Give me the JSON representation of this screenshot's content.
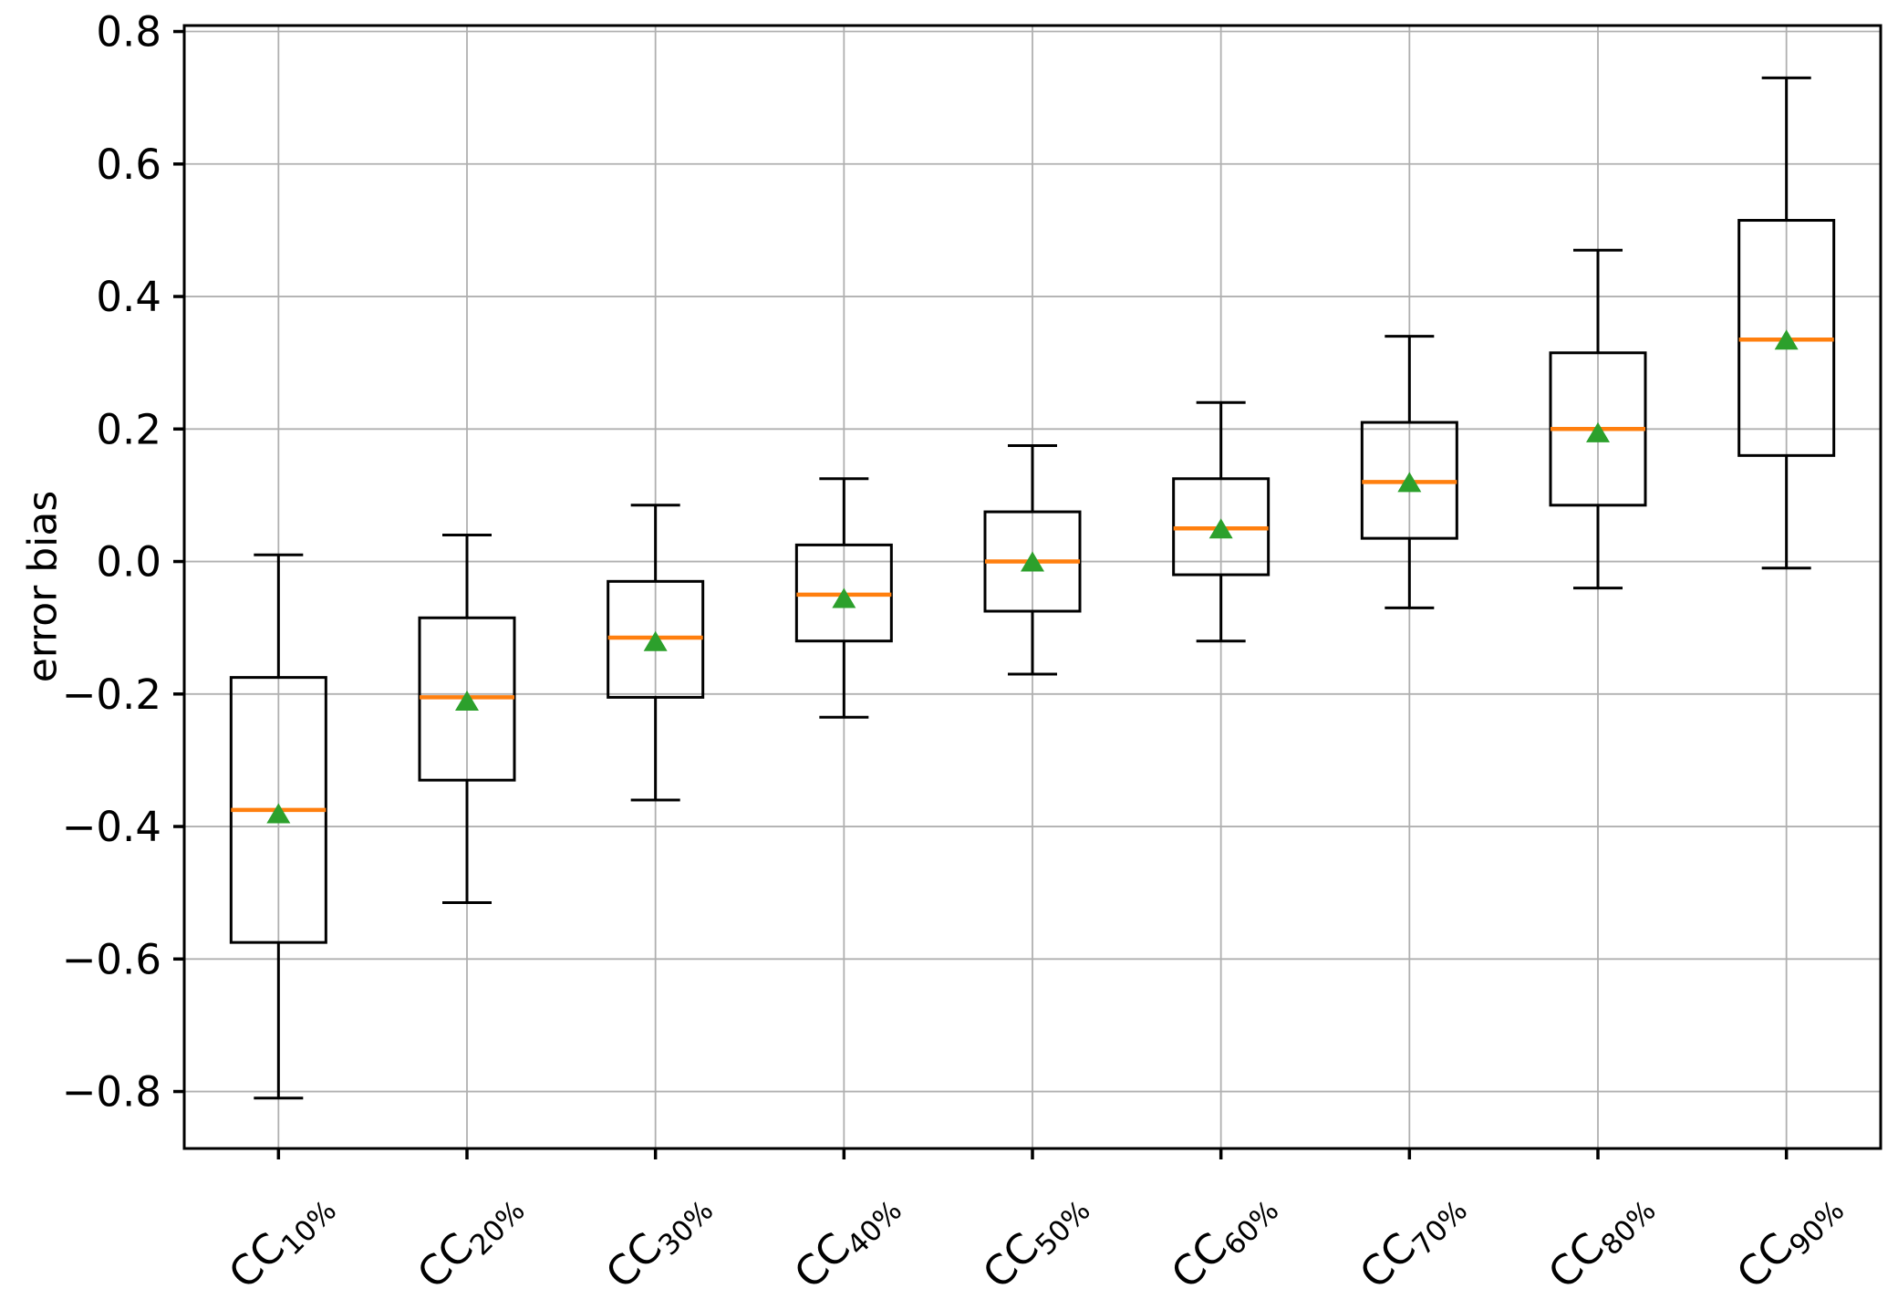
{
  "chart_data": {
    "type": "boxplot",
    "title": "",
    "ylabel": "error bias",
    "xlabel": "",
    "grid": true,
    "legend": "none",
    "ylim": [
      -0.886,
      0.809
    ],
    "yticks": [
      0.8,
      0.6,
      0.4,
      0.2,
      0.0,
      -0.2,
      -0.4,
      -0.6,
      -0.8
    ],
    "ytick_labels": [
      "0.8",
      "0.6",
      "0.4",
      "0.2",
      "0.0",
      "−0.2",
      "−0.4",
      "−0.6",
      "−0.8"
    ],
    "categories": [
      {
        "base": "CC",
        "sub": "10%"
      },
      {
        "base": "CC",
        "sub": "20%"
      },
      {
        "base": "CC",
        "sub": "30%"
      },
      {
        "base": "CC",
        "sub": "40%"
      },
      {
        "base": "CC",
        "sub": "50%"
      },
      {
        "base": "CC",
        "sub": "60%"
      },
      {
        "base": "CC",
        "sub": "70%"
      },
      {
        "base": "CC",
        "sub": "80%"
      },
      {
        "base": "CC",
        "sub": "90%"
      }
    ],
    "series": [
      {
        "name": "CC10%",
        "whislo": -0.81,
        "q1": -0.575,
        "med": -0.375,
        "mean": -0.38,
        "q3": -0.175,
        "whishi": 0.01
      },
      {
        "name": "CC20%",
        "whislo": -0.515,
        "q1": -0.33,
        "med": -0.205,
        "mean": -0.21,
        "q3": -0.085,
        "whishi": 0.04
      },
      {
        "name": "CC30%",
        "whislo": -0.36,
        "q1": -0.205,
        "med": -0.115,
        "mean": -0.12,
        "q3": -0.03,
        "whishi": 0.085
      },
      {
        "name": "CC40%",
        "whislo": -0.235,
        "q1": -0.12,
        "med": -0.05,
        "mean": -0.055,
        "q3": 0.025,
        "whishi": 0.125
      },
      {
        "name": "CC50%",
        "whislo": -0.17,
        "q1": -0.075,
        "med": 0.0,
        "mean": 0.0,
        "q3": 0.075,
        "whishi": 0.175
      },
      {
        "name": "CC60%",
        "whislo": -0.12,
        "q1": -0.02,
        "med": 0.05,
        "mean": 0.05,
        "q3": 0.125,
        "whishi": 0.24
      },
      {
        "name": "CC70%",
        "whislo": -0.07,
        "q1": 0.035,
        "med": 0.12,
        "mean": 0.12,
        "q3": 0.21,
        "whishi": 0.34
      },
      {
        "name": "CC80%",
        "whislo": -0.04,
        "q1": 0.085,
        "med": 0.2,
        "mean": 0.195,
        "q3": 0.315,
        "whishi": 0.47
      },
      {
        "name": "CC90%",
        "whislo": -0.01,
        "q1": 0.16,
        "med": 0.335,
        "mean": 0.335,
        "q3": 0.515,
        "whishi": 0.73
      }
    ],
    "colors": {
      "median": "#ff7f0e",
      "mean_marker": "#2ca02c",
      "box_line": "#000000",
      "grid_line": "#b0b0b0",
      "background": "#ffffff",
      "text": "#000000"
    }
  }
}
